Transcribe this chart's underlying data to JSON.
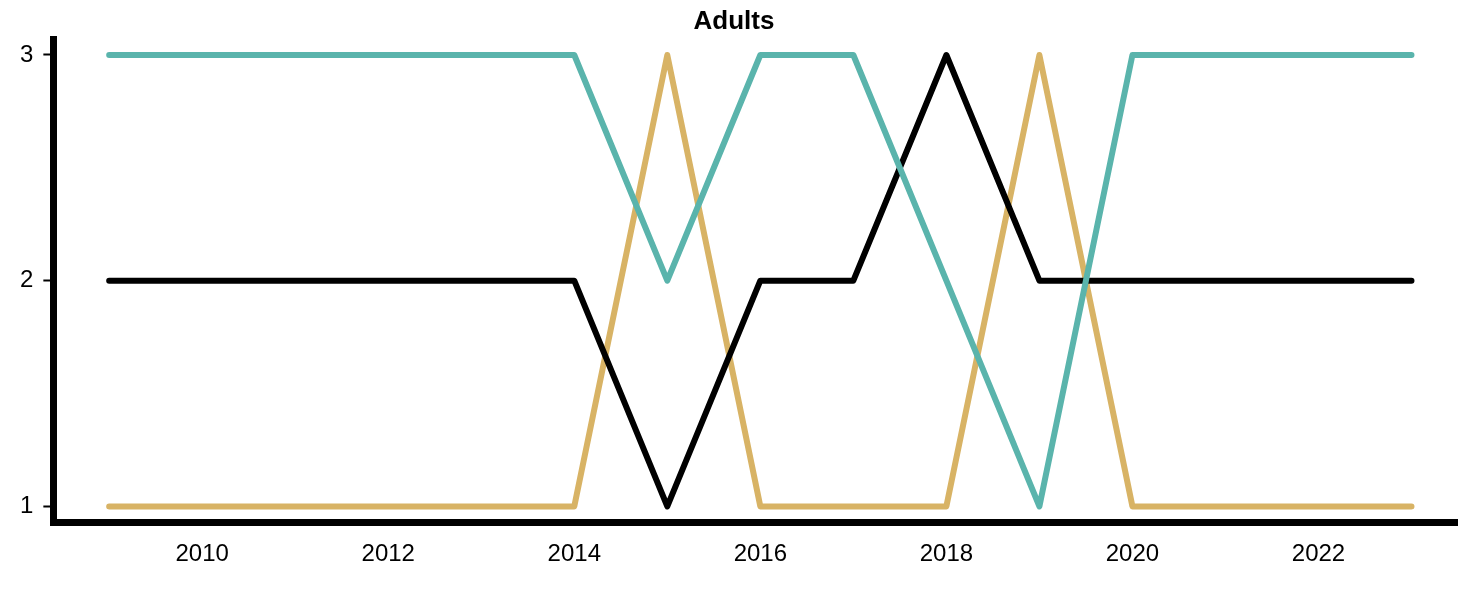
{
  "chart_data": {
    "type": "line",
    "title": "Adults",
    "x": [
      2009,
      2010,
      2011,
      2012,
      2013,
      2014,
      2015,
      2016,
      2017,
      2018,
      2019,
      2020,
      2021,
      2022,
      2023
    ],
    "series": [
      {
        "color": "#5ab4ac",
        "values": [
          3,
          3,
          3,
          3,
          3,
          3,
          2,
          3,
          3,
          2,
          1,
          3,
          3,
          3,
          3
        ]
      },
      {
        "color": "#000000",
        "values": [
          2,
          2,
          2,
          2,
          2,
          2,
          1,
          2,
          2,
          3,
          2,
          2,
          2,
          2,
          2
        ]
      },
      {
        "color": "#d8b365",
        "values": [
          1,
          1,
          1,
          1,
          1,
          1,
          3,
          1,
          1,
          1,
          3,
          1,
          1,
          1,
          1
        ]
      }
    ],
    "xlim": [
      2008.4,
      2023.5
    ],
    "xticks": [
      2010,
      2012,
      2014,
      2016,
      2018,
      2020,
      2022
    ],
    "ylim": [
      0.93,
      3.07
    ],
    "yticks": [
      1,
      2,
      3
    ],
    "grid": false,
    "legend": false,
    "marker": "none",
    "line_style": "solid"
  }
}
